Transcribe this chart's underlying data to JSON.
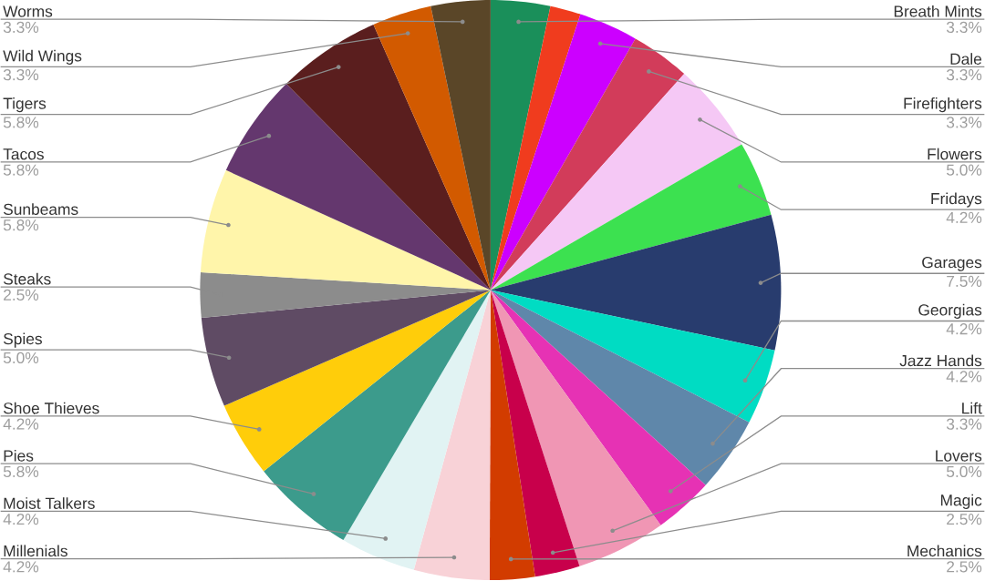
{
  "chart_data": {
    "type": "pie",
    "categories": [
      "Breath Mints",
      null,
      "Dale",
      "Firefighters",
      "Flowers",
      "Fridays",
      "Garages",
      "Georgias",
      "Jazz Hands",
      "Lift",
      "Lovers",
      "Magic",
      "Mechanics",
      "Millenials",
      "Moist Talkers",
      "Pies",
      "Shoe Thieves",
      "Spies",
      "Steaks",
      "Sunbeams",
      "Tacos",
      "Tigers",
      "Wild Wings",
      "Worms"
    ],
    "values": [
      3.3,
      1.7,
      3.3,
      3.3,
      5.0,
      4.2,
      7.5,
      4.2,
      4.2,
      3.3,
      5.0,
      2.5,
      2.5,
      4.2,
      4.2,
      5.8,
      4.2,
      5.0,
      2.5,
      5.8,
      5.8,
      5.8,
      3.3,
      3.3
    ],
    "value_labels": [
      "3.3%",
      null,
      "3.3%",
      "3.3%",
      "5.0%",
      "4.2%",
      "7.5%",
      "4.2%",
      "4.2%",
      "3.3%",
      "5.0%",
      "2.5%",
      "2.5%",
      "4.2%",
      "4.2%",
      "5.8%",
      "4.2%",
      "5.0%",
      "2.5%",
      "5.8%",
      "5.8%",
      "5.8%",
      "3.3%",
      "3.3%"
    ],
    "colors": [
      "#1a8f5a",
      "#f03c1e",
      "#cc00ff",
      "#d23c5a",
      "#f5c8f5",
      "#3ce150",
      "#283c6e",
      "#00dcc3",
      "#5f87aa",
      "#e632b4",
      "#f096b4",
      "#c8004b",
      "#d23c00",
      "#f8d2d7",
      "#e1f3f3",
      "#3c9b8c",
      "#ffcd0a",
      "#5f4b64",
      "#8c8c8c",
      "#fff5aa",
      "#64376e",
      "#5a1e1e",
      "#d25a00",
      "#5a4628"
    ]
  }
}
